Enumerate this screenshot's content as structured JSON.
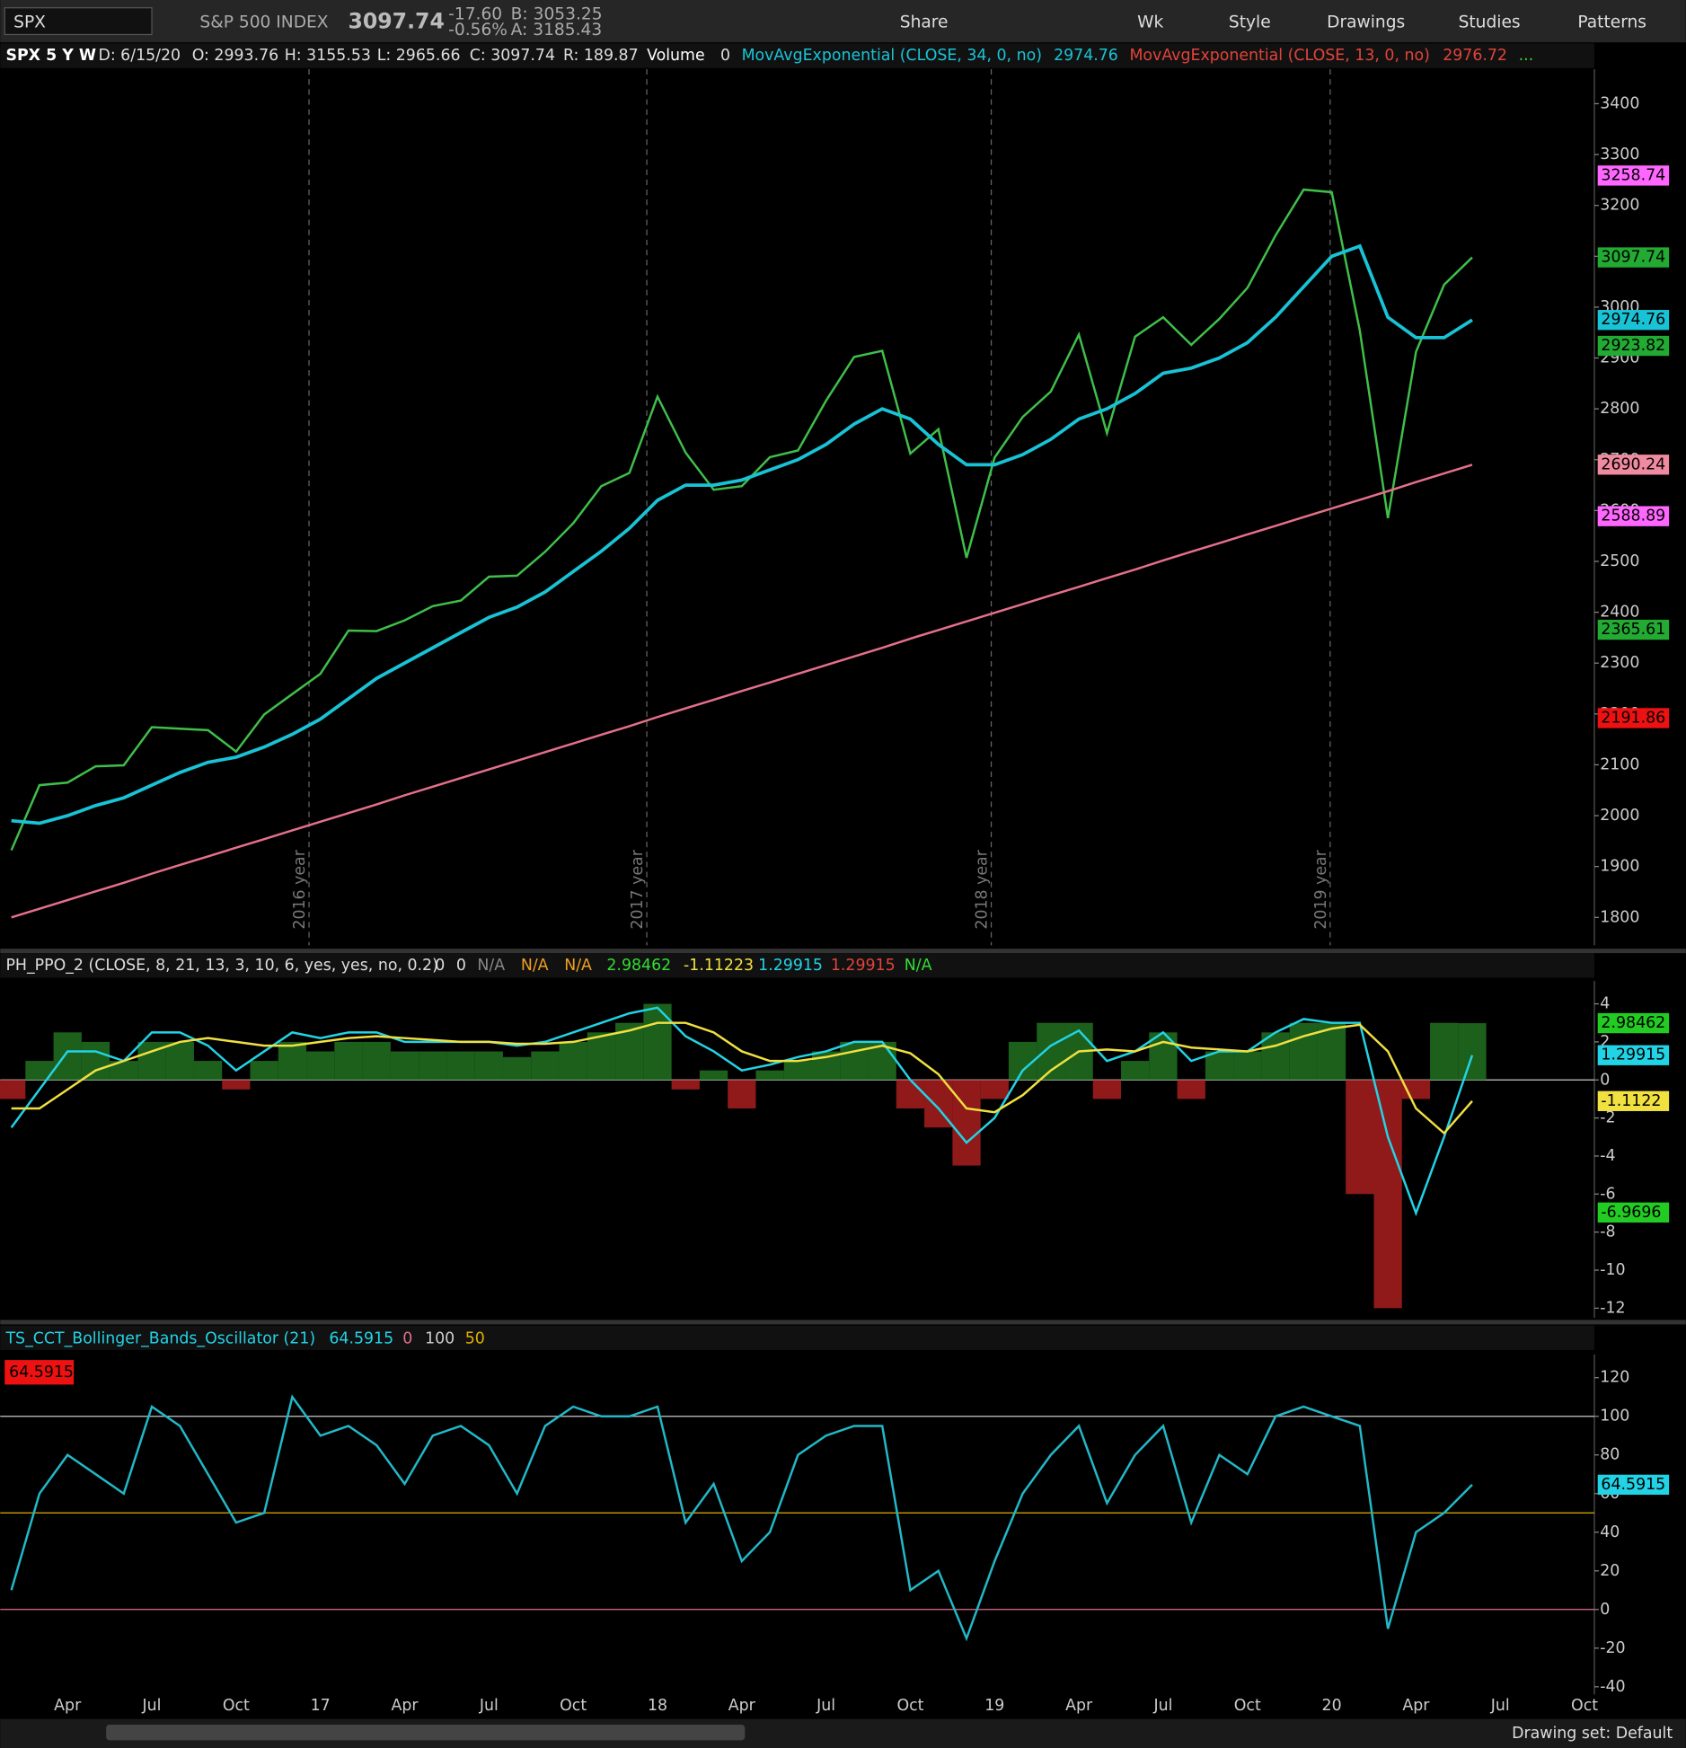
{
  "toolbar": {
    "symbol": "SPX",
    "description": "S&P 500 INDEX",
    "last": "3097.74",
    "change": "-17.60",
    "change_pct": "-0.56%",
    "bid": "B: 3053.25",
    "ask": "A: 3185.43",
    "buttons": [
      "Share",
      "Wk",
      "Style",
      "Drawings",
      "Studies",
      "Patterns"
    ]
  },
  "footer": {
    "drawing_set": "Drawing set: Default"
  },
  "chart_data": [
    {
      "type": "line",
      "header": {
        "title": "SPX 5 Y W",
        "date": "D: 6/15/20",
        "open": "O: 2993.76",
        "high": "H: 3155.53",
        "low": "L: 2965.66",
        "close": "C: 3097.74",
        "range": "R: 189.87",
        "volume_label": "Volume",
        "volume": 0,
        "more": "..."
      },
      "series": [
        {
          "name": "SPX",
          "color": "#3fbf4a",
          "values": [
            1932,
            2060,
            2065,
            2097,
            2099,
            2174,
            2171,
            2168,
            2126,
            2199,
            2239,
            2279,
            2364,
            2363,
            2384,
            2412,
            2423,
            2470,
            2472,
            2519,
            2575,
            2648,
            2674,
            2824,
            2714,
            2641,
            2648,
            2705,
            2718,
            2816,
            2902,
            2914,
            2712,
            2760,
            2507,
            2704,
            2784,
            2834,
            2946,
            2752,
            2942,
            2980,
            2926,
            2977,
            3038,
            3141,
            3231,
            3226,
            2954,
            2585,
            2912,
            3044,
            3097.74,
            null,
            null,
            null,
            null
          ]
        },
        {
          "name": "MovAvgExponential (CLOSE, 34, 0, no)",
          "color": "#19c3d6",
          "last": 2974.76,
          "values": [
            1990,
            1985,
            2000,
            2020,
            2035,
            2060,
            2085,
            2105,
            2115,
            2135,
            2160,
            2190,
            2230,
            2270,
            2300,
            2330,
            2360,
            2390,
            2410,
            2440,
            2480,
            2520,
            2565,
            2620,
            2650,
            2650,
            2660,
            2680,
            2700,
            2730,
            2770,
            2800,
            2780,
            2730,
            2690,
            2690,
            2710,
            2740,
            2780,
            2800,
            2830,
            2870,
            2880,
            2900,
            2930,
            2980,
            3040,
            3100,
            3120,
            2980,
            2940,
            2940,
            2974.76,
            null,
            null,
            null,
            null
          ]
        },
        {
          "color": "#e5708a",
          "values": [
            1800,
            1817,
            1834,
            1851,
            1868,
            1886,
            1903,
            1920,
            1937,
            1954,
            1971,
            1988,
            2005,
            2022,
            2040,
            2057,
            2074,
            2091,
            2108,
            2125,
            2142,
            2159,
            2176,
            2194,
            2211,
            2228,
            2245,
            2262,
            2279,
            2296,
            2313,
            2330,
            2348,
            2365,
            2382,
            2399,
            2416,
            2433,
            2450,
            2467,
            2484,
            2502,
            2519,
            2536,
            2553,
            2570,
            2587,
            2604,
            2621,
            2638,
            2656,
            2673,
            2690,
            null,
            null,
            null,
            null
          ]
        }
      ],
      "ema13": {
        "name": "MovAvgExponential (CLOSE, 13, 0, no)",
        "value": 2976.72,
        "color": "#e0443a"
      },
      "year_labels": [
        "2016 year",
        "2017 year",
        "2018 year",
        "2019 year"
      ],
      "price_labels": [
        {
          "value": 3258.74,
          "color": "#ff66ff"
        },
        {
          "value": 3097.74,
          "color": "#22aa33"
        },
        {
          "value": 2974.76,
          "color": "#19c3d6"
        },
        {
          "value": 2923.82,
          "color": "#22aa33"
        },
        {
          "value": 2690.24,
          "color": "#f08aa0"
        },
        {
          "value": 2588.89,
          "color": "#ff66ff"
        },
        {
          "value": 2365.61,
          "color": "#22aa33"
        },
        {
          "value": 2191.86,
          "color": "#ee1111"
        }
      ],
      "ylim": [
        1745,
        3468
      ],
      "yticks": [
        1800,
        1900,
        2000,
        2100,
        2200,
        2300,
        2400,
        2500,
        2600,
        2700,
        2800,
        2900,
        3000,
        3100,
        3200,
        3300,
        3400
      ]
    },
    {
      "type": "line",
      "title": "PH_PPO_2 (CLOSE, 8, 21, 13, 3, 10, 6, yes, yes, no, 0.2)",
      "header_values": [
        {
          "label": "0",
          "color": "#dddddd"
        },
        {
          "label": "0",
          "color": "#dddddd"
        },
        {
          "label": "N/A",
          "color": "#888888"
        },
        {
          "label": "N/A",
          "color": "#f0a020"
        },
        {
          "label": "N/A",
          "color": "#f0a020"
        },
        {
          "label": "2.98462",
          "color": "#33dd33"
        },
        {
          "label": "-1.11223",
          "color": "#f0e040"
        },
        {
          "label": "1.29915",
          "color": "#22d3e6"
        },
        {
          "label": "1.29915",
          "color": "#e0443a"
        },
        {
          "label": "N/A",
          "color": "#33dd33"
        }
      ],
      "series": [
        {
          "kind": "bar",
          "color": "#1f6a1f",
          "negative_color": "#a01d1d",
          "values": [
            -1,
            1,
            2.5,
            2,
            1,
            2,
            2,
            1,
            -0.5,
            1,
            2,
            1.5,
            2,
            2,
            1.5,
            1.5,
            1.5,
            1.5,
            1.2,
            1.5,
            2,
            2.5,
            3,
            4,
            -0.5,
            0.5,
            -1.5,
            0.5,
            1,
            1.5,
            2,
            2,
            -1.5,
            -2.5,
            -4.5,
            -1,
            2,
            3,
            3,
            -1,
            1,
            2.5,
            -1,
            1.5,
            1.5,
            2.5,
            3,
            3,
            -6,
            -12,
            -1,
            3,
            2.98462,
            null,
            null,
            null,
            null
          ]
        },
        {
          "color": "#22d3e6",
          "values": [
            -2.5,
            -0.5,
            1.5,
            1.5,
            1,
            2.5,
            2.5,
            1.8,
            0.5,
            1.5,
            2.5,
            2.2,
            2.5,
            2.5,
            2,
            2,
            2,
            2,
            1.8,
            2,
            2.5,
            3,
            3.5,
            3.8,
            2.3,
            1.5,
            0.5,
            0.8,
            1.2,
            1.5,
            2,
            2,
            0,
            -1.5,
            -3.3,
            -2,
            0.5,
            1.8,
            2.6,
            1,
            1.5,
            2.5,
            1,
            1.5,
            1.5,
            2.5,
            3.2,
            3,
            3,
            -3,
            -7,
            -3,
            1.29915,
            null,
            null,
            null,
            null
          ]
        },
        {
          "color": "#f0e040",
          "values": [
            -1.5,
            -1.5,
            -0.5,
            0.5,
            1,
            1.5,
            2,
            2.2,
            2,
            1.8,
            1.8,
            2,
            2.2,
            2.3,
            2.2,
            2.1,
            2,
            2,
            1.9,
            1.9,
            2,
            2.3,
            2.6,
            3,
            3,
            2.5,
            1.5,
            1,
            1,
            1.2,
            1.5,
            1.8,
            1.4,
            0.3,
            -1.5,
            -1.7,
            -0.8,
            0.5,
            1.5,
            1.6,
            1.5,
            2,
            1.7,
            1.6,
            1.5,
            1.8,
            2.3,
            2.7,
            2.9,
            1.5,
            -1.5,
            -2.8,
            -1.11223,
            null,
            null,
            null,
            null
          ]
        }
      ],
      "reference_lines": [
        {
          "value": 0,
          "color": "#cccccc"
        }
      ],
      "price_labels": [
        {
          "value": 2.98462,
          "color": "#22cc22"
        },
        {
          "value": 1.29915,
          "color": "#22d3e6"
        },
        {
          "value": -1.1122,
          "color": "#f0e040"
        },
        {
          "value": -6.9696,
          "color": "#22cc22"
        }
      ],
      "ylim": [
        -12.5,
        5.2
      ],
      "yticks": [
        4,
        2,
        0,
        -2,
        -4,
        -6,
        -8,
        -10,
        -12
      ]
    },
    {
      "type": "line",
      "title": "TS_CCT_Bollinger_Bands_Oscillator (21)",
      "header_value": 64.5915,
      "flag": {
        "value": 64.5915,
        "color": "#ee1111"
      },
      "categories": [
        null,
        null,
        "Apr",
        null,
        null,
        "Jul",
        null,
        null,
        "Oct",
        null,
        null,
        "17",
        null,
        null,
        "Apr",
        null,
        null,
        "Jul",
        null,
        null,
        "Oct",
        null,
        null,
        "18",
        null,
        null,
        "Apr",
        null,
        null,
        "Jul",
        null,
        null,
        "Oct",
        null,
        null,
        "19",
        null,
        null,
        "Apr",
        null,
        null,
        "Jul",
        null,
        null,
        "Oct",
        null,
        null,
        "20",
        null,
        null,
        "Apr",
        null,
        null,
        "Jul",
        null,
        null,
        "Oct"
      ],
      "series": [
        {
          "color": "#22b8c8",
          "values": [
            10,
            60,
            80,
            70,
            60,
            105,
            95,
            70,
            45,
            50,
            110,
            90,
            95,
            85,
            65,
            90,
            95,
            85,
            60,
            95,
            105,
            100,
            100,
            105,
            45,
            65,
            25,
            40,
            80,
            90,
            95,
            95,
            10,
            20,
            -15,
            25,
            60,
            80,
            95,
            55,
            80,
            95,
            45,
            80,
            70,
            100,
            105,
            100,
            95,
            -10,
            40,
            50,
            64.5915,
            null,
            null,
            null,
            null
          ]
        }
      ],
      "reference_lines": [
        {
          "value": 0,
          "color": "#e0708a"
        },
        {
          "value": 100,
          "color": "#cccccc"
        },
        {
          "value": 50,
          "color": "#e0b000"
        }
      ],
      "price_labels": [
        {
          "value": 64.5915,
          "color": "#22d3e6"
        }
      ],
      "ylim": [
        -44,
        132
      ],
      "yticks": [
        -40,
        -20,
        0,
        20,
        40,
        60,
        80,
        100,
        120
      ]
    }
  ]
}
